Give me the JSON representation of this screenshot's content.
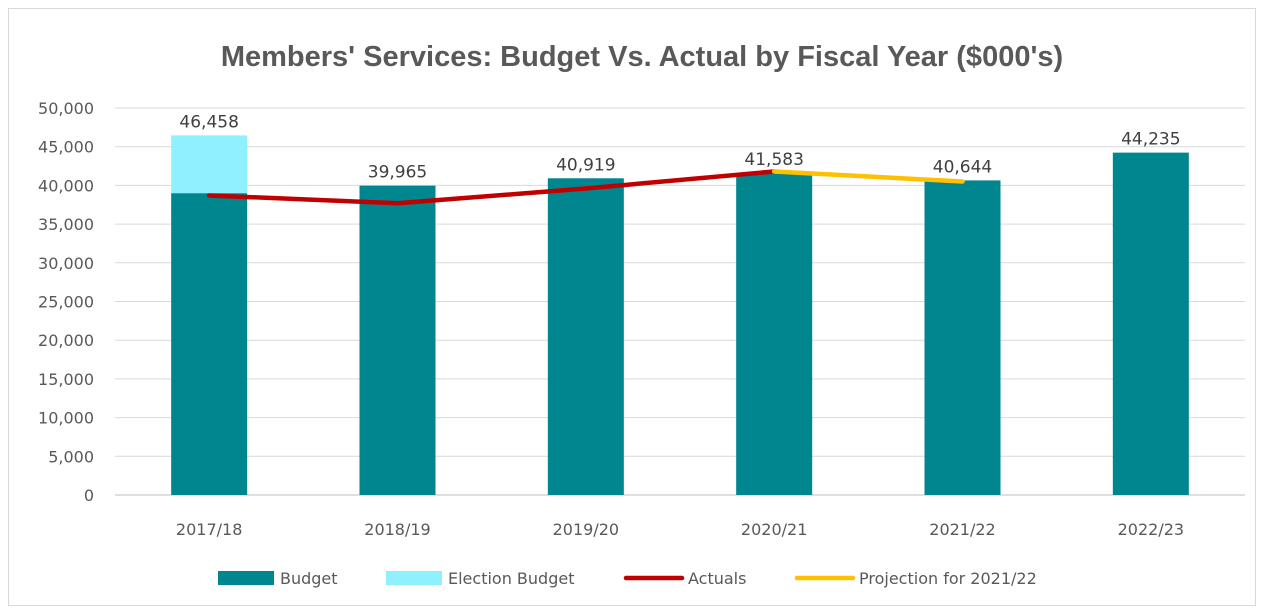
{
  "chart_data": {
    "type": "bar",
    "title": "Members' Services: Budget Vs. Actual by Fiscal Year ($000's)",
    "categories": [
      "2017/18",
      "2018/19",
      "2019/20",
      "2020/21",
      "2021/22",
      "2022/23"
    ],
    "ylim": [
      0,
      50000
    ],
    "yticks": [
      "0",
      "5,000",
      "10,000",
      "15,000",
      "20,000",
      "25,000",
      "30,000",
      "35,000",
      "40,000",
      "45,000",
      "50,000"
    ],
    "ytick_values": [
      0,
      5000,
      10000,
      15000,
      20000,
      25000,
      30000,
      35000,
      40000,
      45000,
      50000
    ],
    "grid": true,
    "legend_position": "bottom",
    "series": [
      {
        "name": "Budget",
        "kind": "bar",
        "color": "#00868f",
        "values": [
          39000,
          39965,
          40919,
          41583,
          40644,
          44235
        ]
      },
      {
        "name": "Election Budget",
        "kind": "stacked-bar",
        "color": "#8ff0ff",
        "values": [
          7458,
          0,
          0,
          0,
          0,
          0
        ]
      },
      {
        "name": "Actuals",
        "kind": "line",
        "color": "#c00000",
        "values": [
          38700,
          37700,
          39600,
          41800,
          null,
          null
        ]
      },
      {
        "name": "Projection for 2021/22",
        "kind": "line",
        "color": "#ffc000",
        "values": [
          null,
          null,
          null,
          41800,
          40500,
          null
        ]
      }
    ],
    "data_labels": [
      "46,458",
      "39,965",
      "40,919",
      "41,583",
      "40,644",
      "44,235"
    ]
  }
}
